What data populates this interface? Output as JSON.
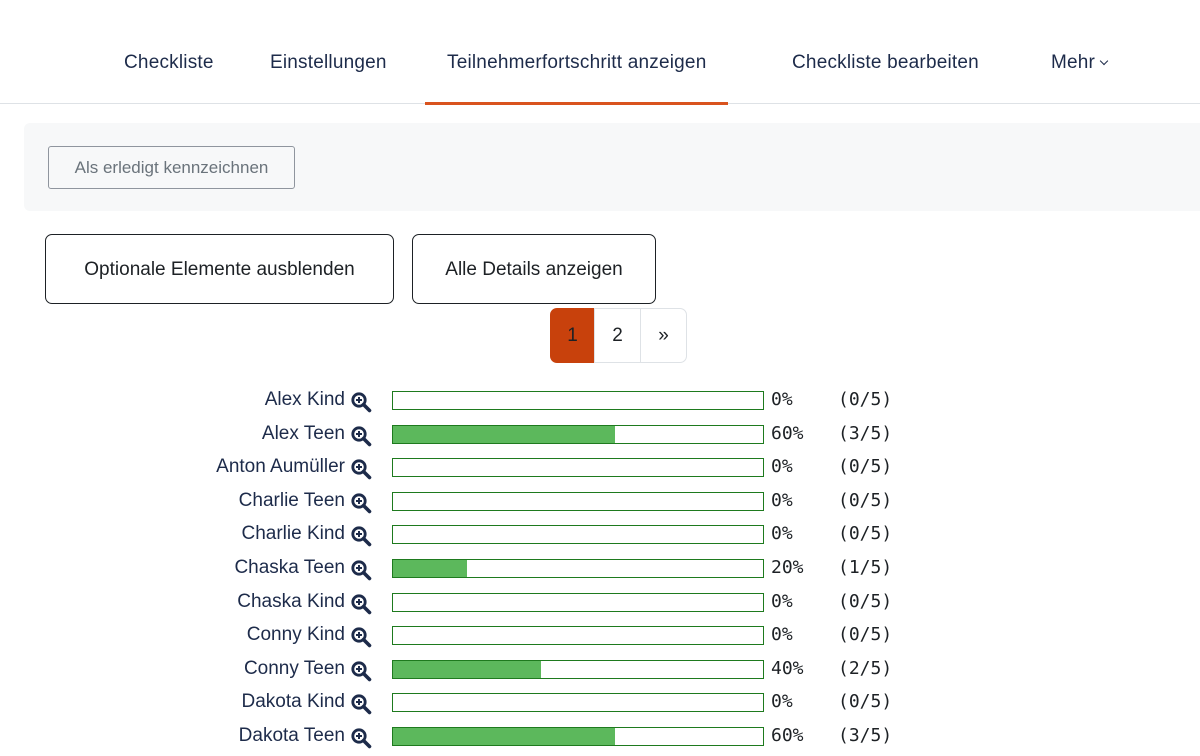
{
  "nav": {
    "tabs": [
      {
        "label": "Checkliste"
      },
      {
        "label": "Einstellungen"
      },
      {
        "label": "Teilnehmerfortschritt anzeigen"
      },
      {
        "label": "Checkliste bearbeiten"
      },
      {
        "label": "Mehr"
      }
    ],
    "active_tab": "Teilnehmerfortschritt anzeigen",
    "accent_color": "#d9531e"
  },
  "toolbar": {
    "mark_done_label": "Als erledigt kennzeichnen"
  },
  "actions": {
    "hide_optional_label": "Optionale Elemente ausblenden",
    "show_all_details_label": "Alle Details anzeigen"
  },
  "pagination": {
    "pages": [
      "1",
      "2"
    ],
    "next_label": "»",
    "current_page": "1",
    "active_color": "#c8410c"
  },
  "participants": [
    {
      "name": "Alex Kind",
      "percent": "0%",
      "count": "(0/5)",
      "progress": 0
    },
    {
      "name": "Alex Teen",
      "percent": "60%",
      "count": "(3/5)",
      "progress": 0.6
    },
    {
      "name": "Anton Aumüller",
      "percent": "0%",
      "count": "(0/5)",
      "progress": 0
    },
    {
      "name": "Charlie Teen",
      "percent": "0%",
      "count": "(0/5)",
      "progress": 0
    },
    {
      "name": "Charlie Kind",
      "percent": "0%",
      "count": "(0/5)",
      "progress": 0
    },
    {
      "name": "Chaska Teen",
      "percent": "20%",
      "count": "(1/5)",
      "progress": 0.2
    },
    {
      "name": "Chaska Kind",
      "percent": "0%",
      "count": "(0/5)",
      "progress": 0
    },
    {
      "name": "Conny Kind",
      "percent": "0%",
      "count": "(0/5)",
      "progress": 0
    },
    {
      "name": "Conny Teen",
      "percent": "40%",
      "count": "(2/5)",
      "progress": 0.4
    },
    {
      "name": "Dakota Kind",
      "percent": "0%",
      "count": "(0/5)",
      "progress": 0
    },
    {
      "name": "Dakota Teen",
      "percent": "60%",
      "count": "(3/5)",
      "progress": 0.6
    }
  ],
  "icons": {
    "participant_details": "zoom-in-icon"
  },
  "colors": {
    "progress_fill": "#5cb85c",
    "progress_border": "#1e7a1e",
    "link": "#1d2b4a"
  }
}
